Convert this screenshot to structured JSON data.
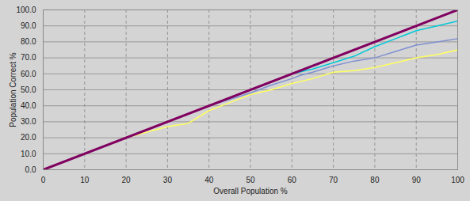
{
  "chart_data": {
    "type": "line",
    "xlabel": "Overall Population %",
    "ylabel": "Population Correct %",
    "xlim": [
      0,
      100
    ],
    "ylim": [
      0,
      100
    ],
    "xticks": [
      0,
      10,
      20,
      30,
      40,
      50,
      60,
      70,
      80,
      90,
      100
    ],
    "yticks": [
      {
        "value": 0,
        "label": "0.0"
      },
      {
        "value": 10,
        "label": "10.0"
      },
      {
        "value": 20,
        "label": "20.0"
      },
      {
        "value": 30,
        "label": "30.0"
      },
      {
        "value": 40,
        "label": "40.0"
      },
      {
        "value": 50,
        "label": "50.0"
      },
      {
        "value": 60,
        "label": "60.0"
      },
      {
        "value": 70,
        "label": "70.0"
      },
      {
        "value": 80,
        "label": "80.0"
      },
      {
        "value": 90,
        "label": "90.0"
      },
      {
        "value": 100,
        "label": "100.0"
      }
    ],
    "grid": true,
    "series": [
      {
        "color": "#ffff60",
        "x": [
          0,
          10,
          20,
          30,
          35,
          40,
          45,
          50,
          55,
          60,
          65,
          70,
          75,
          80,
          85,
          90,
          95,
          100
        ],
        "values": [
          0,
          10,
          20,
          27,
          29,
          37,
          42,
          47,
          50,
          54,
          57,
          61,
          62,
          64,
          67,
          70,
          72,
          75
        ]
      },
      {
        "color": "#8090d0",
        "x": [
          0,
          10,
          20,
          30,
          40,
          50,
          55,
          60,
          62,
          65,
          70,
          75,
          80,
          85,
          90,
          95,
          100
        ],
        "values": [
          0,
          10,
          20,
          30,
          40,
          48,
          53,
          57,
          59,
          61,
          65,
          68,
          70,
          74,
          78,
          80,
          82
        ]
      },
      {
        "color": "#00c8d8",
        "x": [
          0,
          10,
          20,
          30,
          40,
          50,
          60,
          65,
          70,
          75,
          80,
          85,
          90,
          95,
          100
        ],
        "values": [
          0,
          10,
          20,
          30,
          40,
          50,
          60,
          63,
          67,
          71,
          77,
          82,
          87,
          90,
          93
        ]
      },
      {
        "color": "#800060",
        "x": [
          0,
          100
        ],
        "values": [
          0,
          100
        ]
      }
    ]
  }
}
